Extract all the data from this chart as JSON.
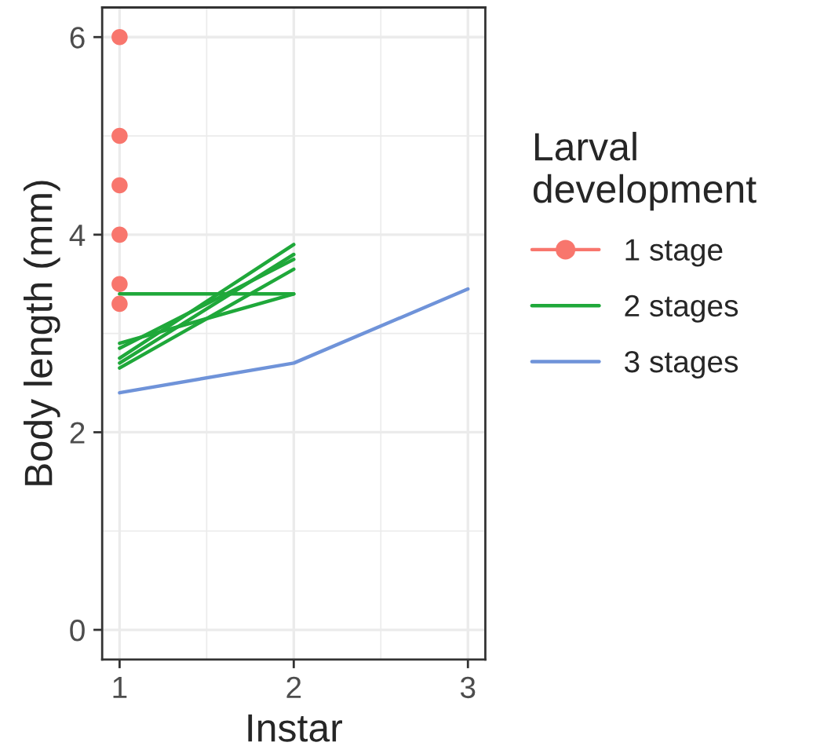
{
  "chart_data": {
    "type": "line",
    "xlabel": "Instar",
    "ylabel": "Body length (mm)",
    "legend_title": "Larval\ndevelopment",
    "xlim": [
      0.9,
      3.1
    ],
    "ylim": [
      -0.3,
      6.3
    ],
    "xticks": [
      1,
      2,
      3
    ],
    "yticks": [
      0,
      2,
      4,
      6
    ],
    "grid": true,
    "legend": "right",
    "series": [
      {
        "name": "1 stage",
        "type": "scatter",
        "marker": "circle",
        "color": "#f8766d",
        "x": [
          1,
          1,
          1,
          1,
          1,
          1
        ],
        "values": [
          6.0,
          5.0,
          4.5,
          4.0,
          3.5,
          3.3
        ]
      },
      {
        "name": "2 stages",
        "color": "#1fa83a",
        "x": [
          1,
          2
        ],
        "values": [
          3.4,
          3.4
        ]
      },
      {
        "color": "#1fa83a",
        "x": [
          1,
          2
        ],
        "values": [
          2.9,
          3.4
        ]
      },
      {
        "color": "#1fa83a",
        "x": [
          1,
          2
        ],
        "values": [
          2.85,
          3.75
        ]
      },
      {
        "color": "#1fa83a",
        "x": [
          1,
          2
        ],
        "values": [
          2.75,
          3.9
        ]
      },
      {
        "color": "#1fa83a",
        "x": [
          1,
          2
        ],
        "values": [
          2.7,
          3.8
        ]
      },
      {
        "color": "#1fa83a",
        "x": [
          1,
          2
        ],
        "values": [
          2.65,
          3.65
        ]
      },
      {
        "name": "3 stages",
        "color": "#6f93d9",
        "x": [
          1,
          2,
          3
        ],
        "values": [
          2.4,
          2.7,
          3.45
        ]
      }
    ]
  }
}
